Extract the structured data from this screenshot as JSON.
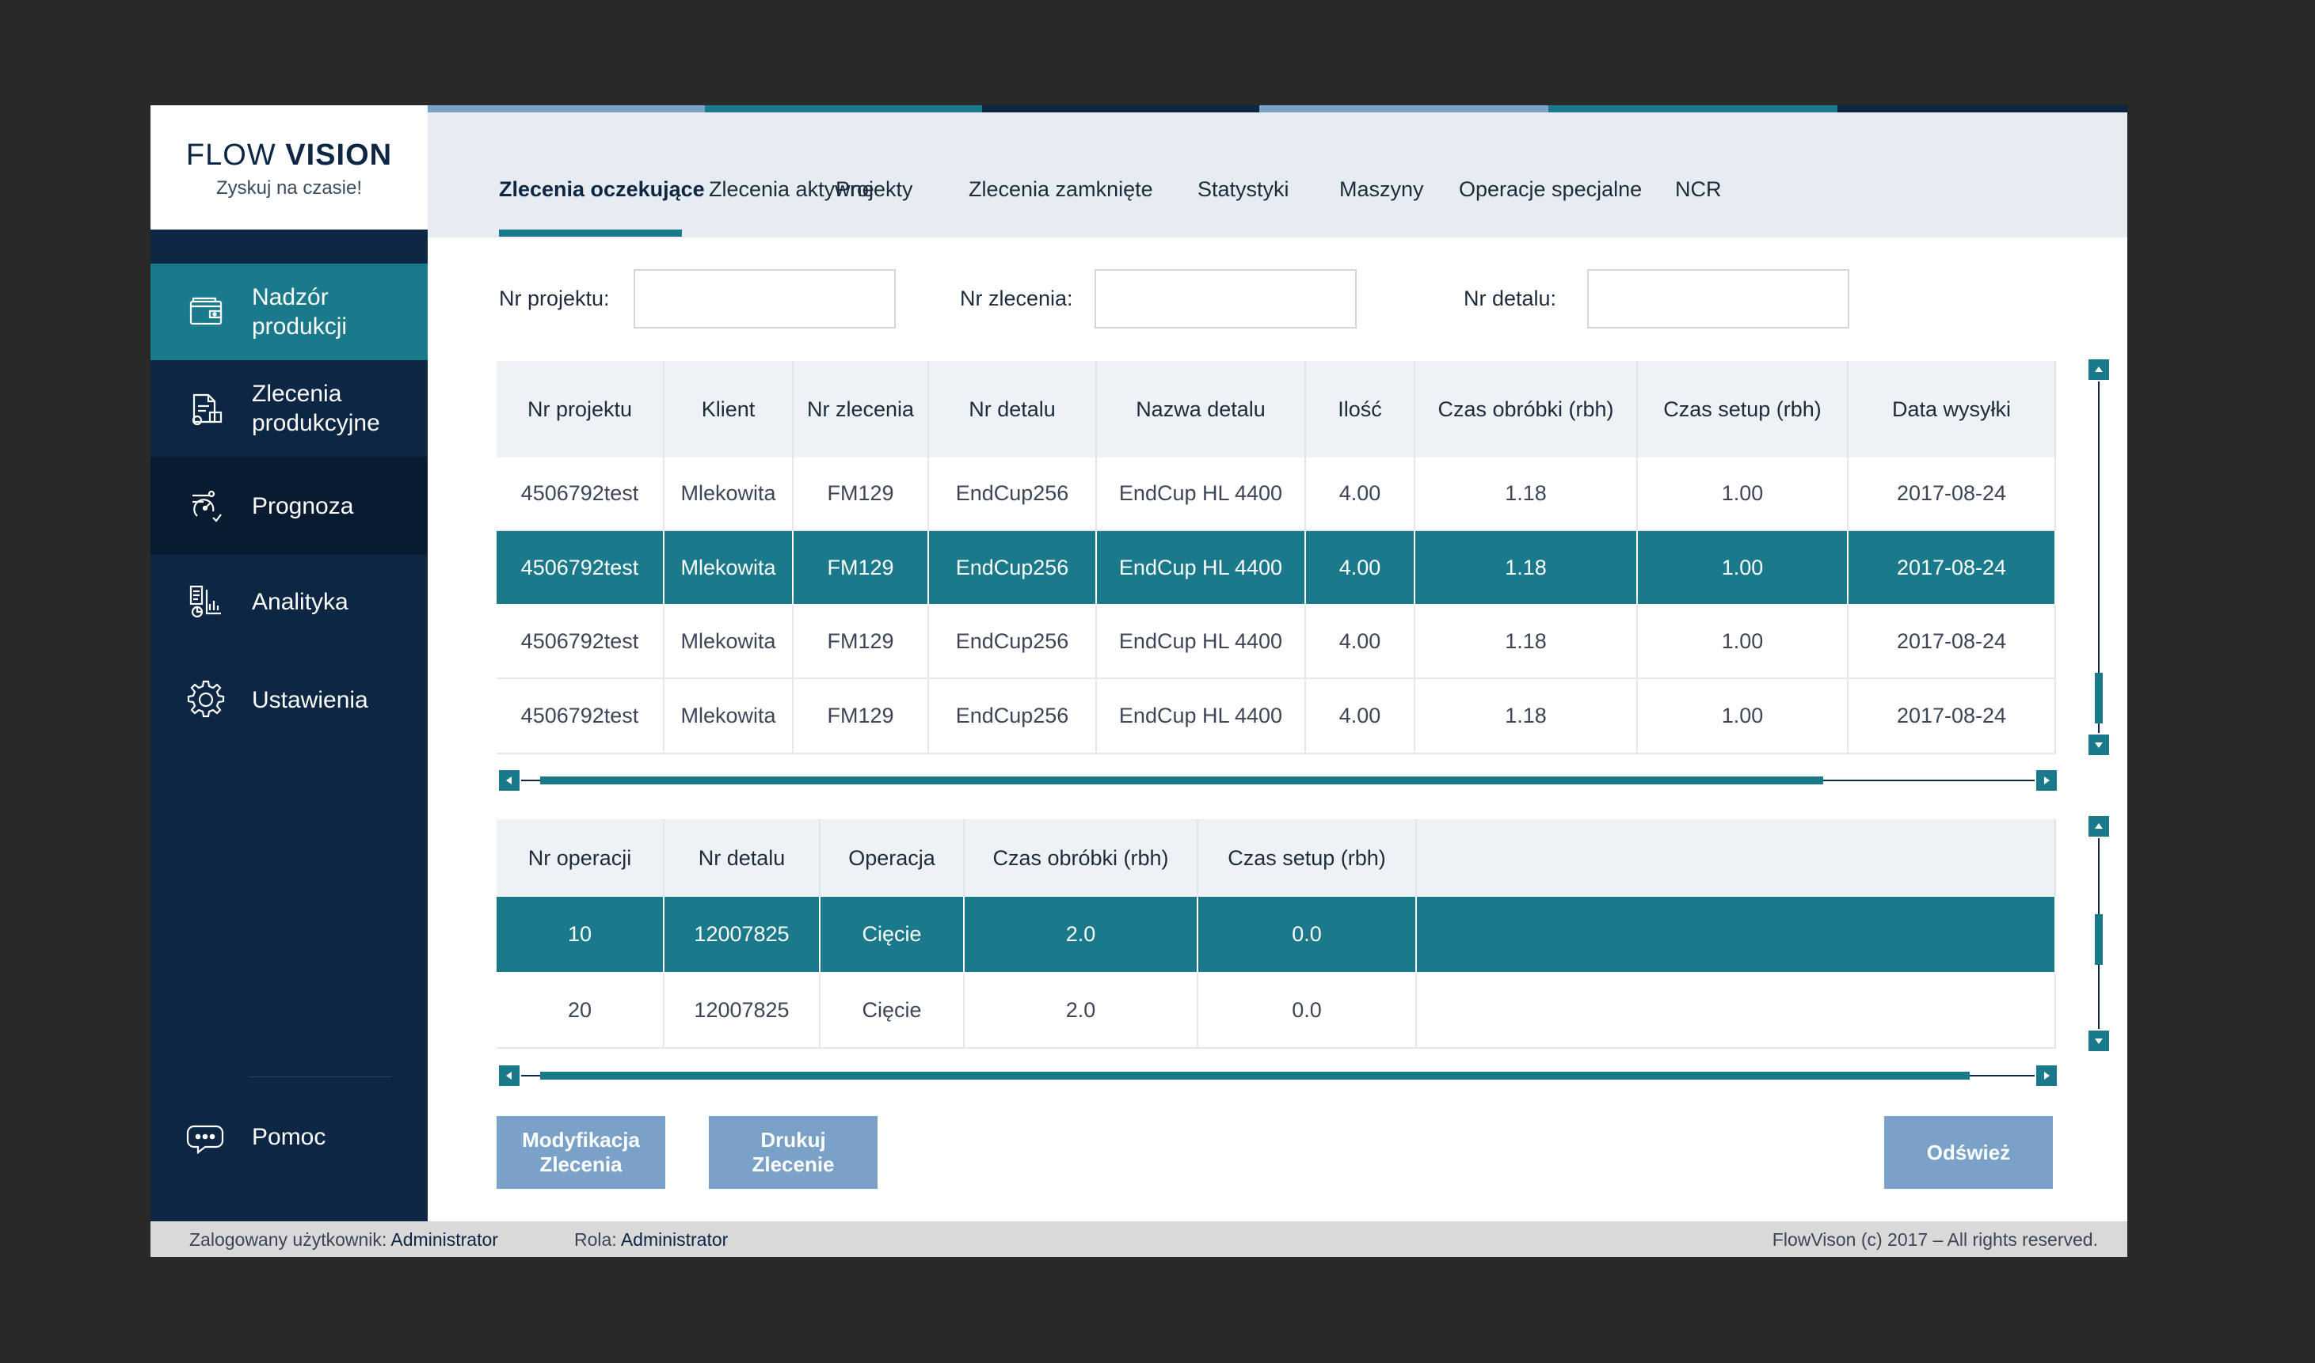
{
  "brand": {
    "name_light": "FLOW",
    "name_bold": "VISION",
    "tagline": "Zyskuj na czasie!"
  },
  "theme": {
    "navy": "#0d2644",
    "teal": "#1a7a8c",
    "light_blue": "#7aa1c8",
    "header_bg": "#e6ecf1"
  },
  "stripe_colors": [
    "#7aa1c8",
    "#1a7a8c",
    "#0d2644",
    "#7aa1c8",
    "#1a7a8c",
    "#0d2644"
  ],
  "sidebar": {
    "items": [
      {
        "label": "Nadzór produkcji",
        "icon": "folder-icon",
        "state": "active"
      },
      {
        "label": "Zlecenia produkcyjne",
        "icon": "documents-icon",
        "state": "normal"
      },
      {
        "label": "Prognoza",
        "icon": "forecast-icon",
        "state": "hover"
      },
      {
        "label": "Analityka",
        "icon": "analytics-icon",
        "state": "normal"
      },
      {
        "label": "Ustawienia",
        "icon": "gear-icon",
        "state": "normal"
      }
    ],
    "help": {
      "label": "Pomoc",
      "icon": "chat-bubble-icon"
    }
  },
  "tabs": [
    {
      "label": "Zlecenia oczekujące",
      "active": true
    },
    {
      "label": "Zlecenia aktywne",
      "active": false
    },
    {
      "label": "Projekty",
      "active": false
    },
    {
      "label": "Zlecenia zamknięte",
      "active": false
    },
    {
      "label": "Statystyki",
      "active": false
    },
    {
      "label": "Maszyny",
      "active": false
    },
    {
      "label": "Operacje specjalne",
      "active": false
    },
    {
      "label": "NCR",
      "active": false
    }
  ],
  "filters": {
    "project_label": "Nr projektu:",
    "project_value": "",
    "order_label": "Nr zlecenia:",
    "order_value": "",
    "part_label": "Nr detalu:",
    "part_value": ""
  },
  "orders_table": {
    "columns": [
      "Nr projektu",
      "Klient",
      "Nr zlecenia",
      "Nr detalu",
      "Nazwa detalu",
      "Ilość",
      "Czas obróbki (rbh)",
      "Czas setup (rbh)",
      "Data wysyłki"
    ],
    "selected_row": 1,
    "rows": [
      [
        "4506792test",
        "Mlekowita",
        "FM129",
        "EndCup256",
        "EndCup HL 4400",
        "4.00",
        "1.18",
        "1.00",
        "2017-08-24"
      ],
      [
        "4506792test",
        "Mlekowita",
        "FM129",
        "EndCup256",
        "EndCup HL 4400",
        "4.00",
        "1.18",
        "1.00",
        "2017-08-24"
      ],
      [
        "4506792test",
        "Mlekowita",
        "FM129",
        "EndCup256",
        "EndCup HL 4400",
        "4.00",
        "1.18",
        "1.00",
        "2017-08-24"
      ],
      [
        "4506792test",
        "Mlekowita",
        "FM129",
        "EndCup256",
        "EndCup HL 4400",
        "4.00",
        "1.18",
        "1.00",
        "2017-08-24"
      ]
    ]
  },
  "operations_table": {
    "columns": [
      "Nr operacji",
      "Nr detalu",
      "Operacja",
      "Czas obróbki (rbh)",
      "Czas setup (rbh)",
      ""
    ],
    "selected_row": 0,
    "rows": [
      [
        "10",
        "12007825",
        "Cięcie",
        "2.0",
        "0.0",
        ""
      ],
      [
        "20",
        "12007825",
        "Cięcie",
        "2.0",
        "0.0",
        ""
      ]
    ]
  },
  "buttons": {
    "modify": "Modyfikacja\nZlecenia",
    "print": "Drukuj\nZlecenie",
    "refresh": "Odśwież"
  },
  "footer": {
    "user_label": "Zalogowany użytkownik:",
    "user_value": "Administrator",
    "role_label": "Rola:",
    "role_value": "Administrator",
    "copyright": "FlowVison (c) 2017 – All rights reserved."
  }
}
